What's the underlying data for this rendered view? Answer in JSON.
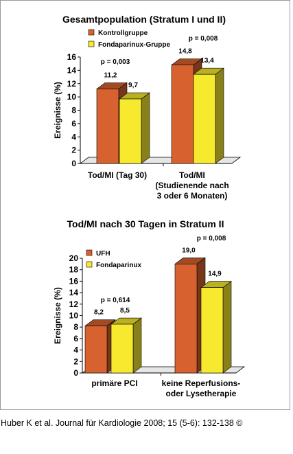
{
  "caption": "Huber K et al. Journal für Kardiologie 2008; 15 (5-6): 132-138 ©",
  "colors": {
    "series_1": "#d8622f",
    "series_2": "#f7ea2e",
    "floor": "#c0c0c0",
    "text": "#000000"
  },
  "chart_data": [
    {
      "type": "bar",
      "title": "Gesamtpopulation (Stratum I und II)",
      "ylabel": "Ereignisse (%)",
      "xlabel": "",
      "ylim": [
        0,
        16
      ],
      "yticks": [
        0,
        2,
        4,
        6,
        8,
        10,
        12,
        14,
        16
      ],
      "categories": [
        [
          "Tod/MI (Tag 30)"
        ],
        [
          "Tod/MI",
          "(Studienende nach",
          "3 oder 6 Monaten)"
        ]
      ],
      "series": [
        {
          "name": "Kontrollgruppe",
          "values": [
            11.2,
            14.8
          ],
          "labels": [
            "11,2",
            "14,8"
          ]
        },
        {
          "name": "Fondaparinux-Gruppe",
          "values": [
            9.7,
            13.4
          ],
          "labels": [
            "9,7",
            "13,4"
          ]
        }
      ],
      "p_values": [
        "p = 0,003",
        "p = 0,008"
      ],
      "legend": "top-left",
      "grid": false,
      "style": "3d"
    },
    {
      "type": "bar",
      "title": "Tod/MI nach 30 Tagen in Stratum II",
      "ylabel": "Ereignisse (%)",
      "xlabel": "",
      "ylim": [
        0,
        20
      ],
      "yticks": [
        0,
        2,
        4,
        6,
        8,
        10,
        12,
        14,
        16,
        18,
        20
      ],
      "categories": [
        [
          "primäre PCI"
        ],
        [
          "keine Reperfusions-",
          "oder Lysetherapie"
        ]
      ],
      "series": [
        {
          "name": "UFH",
          "values": [
            8.2,
            19.0
          ],
          "labels": [
            "8,2",
            "19,0"
          ]
        },
        {
          "name": "Fondaparinux",
          "values": [
            8.5,
            14.9
          ],
          "labels": [
            "8,5",
            "14,9"
          ]
        }
      ],
      "p_values": [
        "p = 0,614",
        "p = 0,008"
      ],
      "legend": "top-left",
      "grid": false,
      "style": "3d"
    }
  ]
}
